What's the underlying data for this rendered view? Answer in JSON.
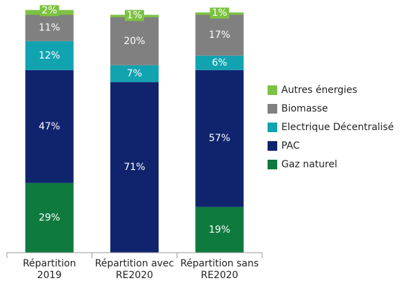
{
  "chart_data": {
    "type": "stacked-bar",
    "categories": [
      "Répartition 2019",
      "Répartition avec RE2020",
      "Répartition sans RE2020"
    ],
    "ylim": [
      0,
      100
    ],
    "series": [
      {
        "name": "Gaz naturel",
        "color": "#0e7a3e",
        "values": [
          29,
          null,
          19
        ],
        "value_labels": [
          "29%",
          null,
          "19%"
        ]
      },
      {
        "name": "PAC",
        "color": "#10246e",
        "values": [
          47,
          71,
          57
        ],
        "value_labels": [
          "47%",
          "71%",
          "57%"
        ]
      },
      {
        "name": "Electrique Décentralisé",
        "color": "#12a3b0",
        "values": [
          12,
          7,
          6
        ],
        "value_labels": [
          "12%",
          "7%",
          "6%"
        ]
      },
      {
        "name": "Biomasse",
        "color": "#808080",
        "values": [
          11,
          20,
          17
        ],
        "value_labels": [
          "11%",
          "20%",
          "17%"
        ]
      },
      {
        "name": "Autres énergies",
        "color": "#7dc242",
        "values": [
          2,
          1,
          1
        ],
        "value_labels": [
          "2%",
          "1%",
          "1%"
        ]
      }
    ]
  }
}
